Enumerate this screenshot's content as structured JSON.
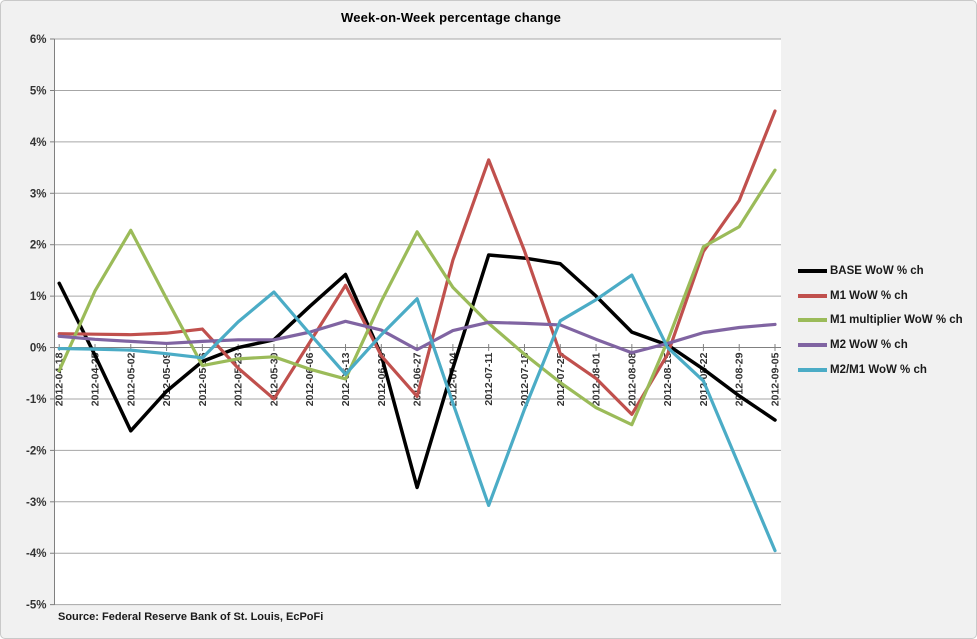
{
  "title": "Week-on-Week percentage change",
  "source_note": "Source: Federal Reserve Bank of St. Louis, EcPoFi",
  "colors": {
    "background": "#F1F1F1",
    "plot_background": "#FFFFFF",
    "gridline": "#A6A6A6",
    "axis": "#808080",
    "label_text": "#333333",
    "series": [
      "#000000",
      "#C0504D",
      "#9BBB59",
      "#8064A2",
      "#4BACC6"
    ]
  },
  "chart_data": {
    "type": "line",
    "title": "Week-on-Week percentage change",
    "xlabel": "",
    "ylabel": "",
    "ylim": [
      -5,
      6
    ],
    "y_tick_step": 1,
    "y_tick_labels": [
      "6%",
      "5%",
      "4%",
      "3%",
      "2%",
      "1%",
      "0%",
      "-1%",
      "-2%",
      "-3%",
      "-4%",
      "-5%"
    ],
    "grid": true,
    "legend_position": "right",
    "categories": [
      "2012-04-18",
      "2012-04-25",
      "2012-05-02",
      "2012-05-09",
      "2012-05-16",
      "2012-05-23",
      "2012-05-30",
      "2012-06-06",
      "2012-06-13",
      "2012-06-20",
      "2012-06-27",
      "2012-07-04",
      "2012-07-11",
      "2012-07-18",
      "2012-07-25",
      "2012-08-01",
      "2012-08-08",
      "2012-08-15",
      "2012-08-22",
      "2012-08-29",
      "2012-09-05"
    ],
    "series": [
      {
        "name": "BASE WoW % ch",
        "color": "#000000",
        "values": [
          1.25,
          -0.15,
          -1.62,
          -0.85,
          -0.27,
          0.0,
          0.15,
          0.8,
          1.42,
          -0.15,
          -2.72,
          -0.4,
          1.8,
          1.74,
          1.63,
          1.0,
          0.3,
          0.05,
          -0.42,
          -0.94,
          -1.41
        ]
      },
      {
        "name": "M1 WoW % ch",
        "color": "#C0504D",
        "values": [
          0.27,
          0.26,
          0.25,
          0.28,
          0.36,
          -0.4,
          -1.0,
          0.1,
          1.21,
          -0.16,
          -0.95,
          1.7,
          3.65,
          1.88,
          -0.12,
          -0.6,
          -1.3,
          -0.13,
          1.87,
          2.86,
          4.6
        ]
      },
      {
        "name": "M1 multiplier WoW % ch",
        "color": "#9BBB59",
        "values": [
          -0.45,
          1.1,
          2.28,
          0.95,
          -0.35,
          -0.22,
          -0.18,
          -0.42,
          -0.61,
          0.9,
          2.25,
          1.17,
          0.47,
          -0.13,
          -0.68,
          -1.17,
          -1.5,
          0.13,
          1.96,
          2.35,
          3.45
        ]
      },
      {
        "name": "M2 WoW % ch",
        "color": "#8064A2",
        "values": [
          0.22,
          0.16,
          0.12,
          0.08,
          0.12,
          0.15,
          0.15,
          0.3,
          0.51,
          0.34,
          -0.04,
          0.33,
          0.49,
          0.47,
          0.44,
          0.16,
          -0.1,
          0.08,
          0.29,
          0.39,
          0.45
        ]
      },
      {
        "name": "M2/M1 WoW % ch",
        "color": "#4BACC6",
        "values": [
          -0.02,
          -0.03,
          -0.05,
          -0.12,
          -0.2,
          0.5,
          1.08,
          0.27,
          -0.52,
          0.25,
          0.95,
          -1.08,
          -3.07,
          -1.2,
          0.52,
          0.93,
          1.41,
          0.0,
          -0.65,
          -2.3,
          -3.95
        ]
      }
    ]
  }
}
